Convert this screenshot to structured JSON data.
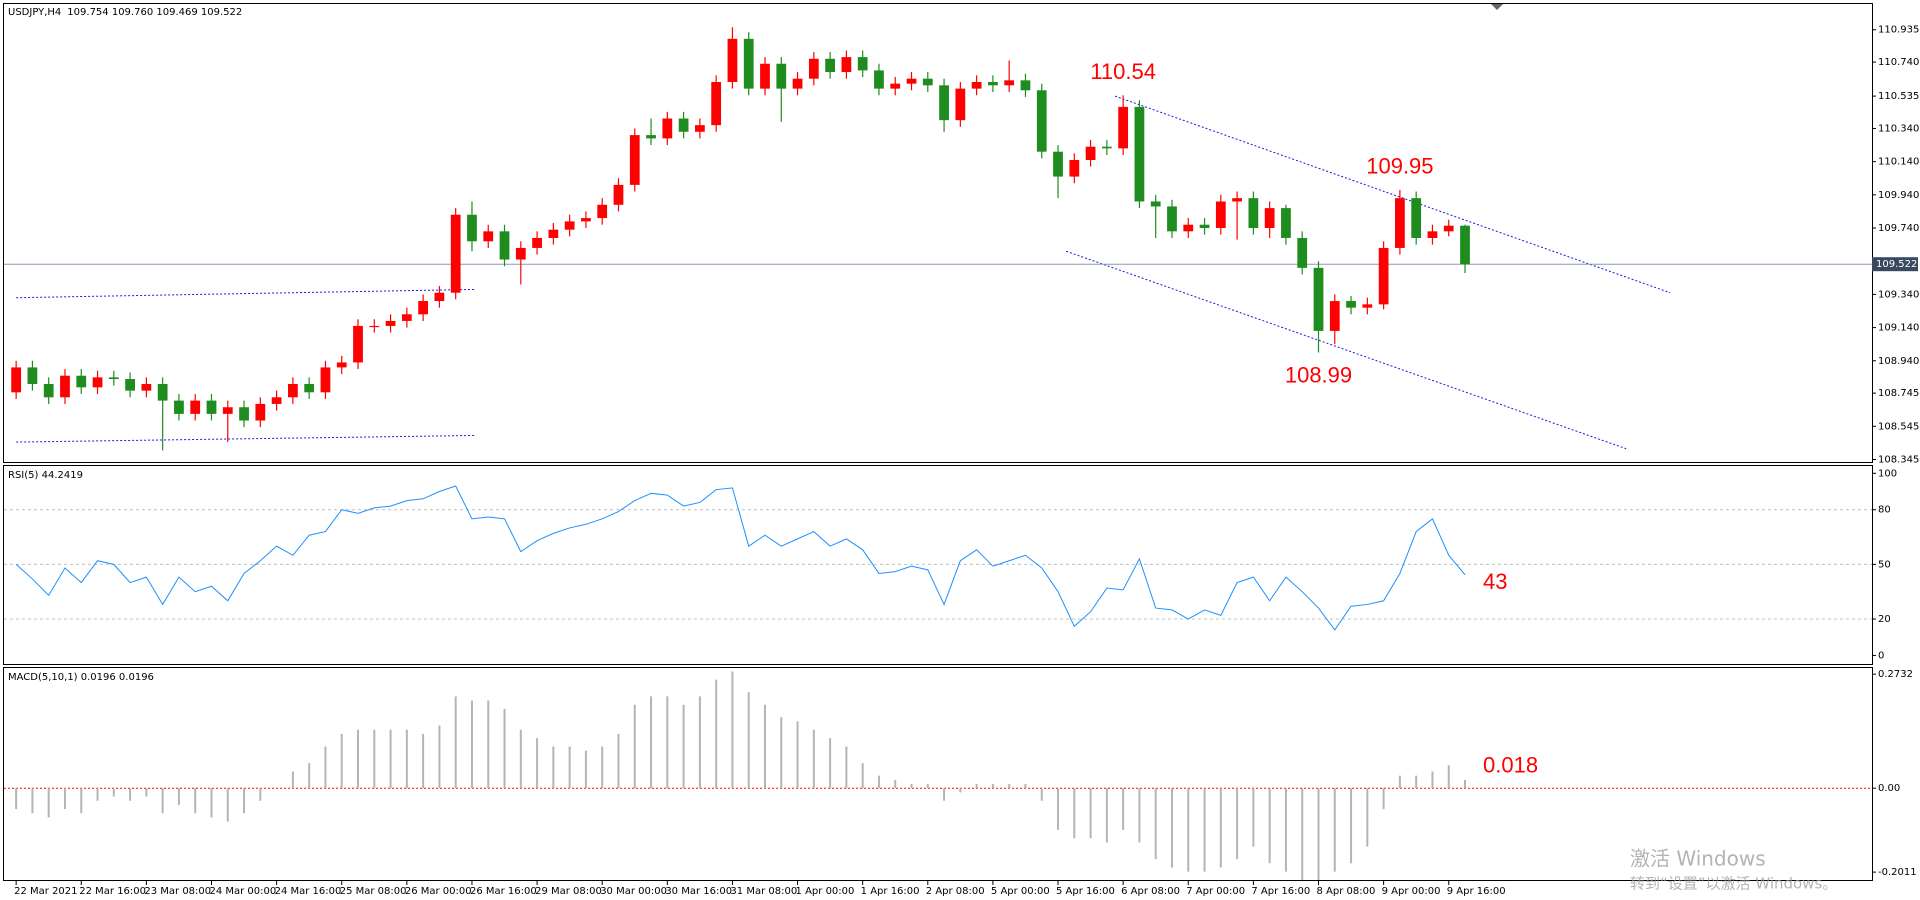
{
  "chart_data": [
    {
      "type": "candlestick",
      "title": "USDJPY,H4",
      "quote": "109.754 109.760 109.469 109.522",
      "categories": [
        "22 Mar 2021",
        null,
        null,
        null,
        "22 Mar 16:00",
        null,
        null,
        null,
        "23 Mar 08:00",
        null,
        null,
        null,
        "24 Mar 00:00",
        null,
        null,
        null,
        "24 Mar 16:00",
        null,
        null,
        null,
        "25 Mar 08:00",
        null,
        null,
        null,
        "26 Mar 00:00",
        null,
        null,
        null,
        "26 Mar 16:00",
        null,
        null,
        null,
        "29 Mar 08:00",
        null,
        null,
        null,
        "30 Mar 00:00",
        null,
        null,
        null,
        "30 Mar 16:00",
        null,
        null,
        null,
        "31 Mar 08:00",
        null,
        null,
        null,
        "1 Apr 00:00",
        null,
        null,
        null,
        "1 Apr 16:00",
        null,
        null,
        null,
        "2 Apr 08:00",
        null,
        null,
        null,
        "5 Apr 00:00",
        null,
        null,
        null,
        "5 Apr 16:00",
        null,
        null,
        null,
        "6 Apr 08:00",
        null,
        null,
        null,
        "7 Apr 00:00",
        null,
        null,
        null,
        "7 Apr 16:00",
        null,
        null,
        null,
        "8 Apr 08:00",
        null,
        null,
        null,
        "9 Apr 00:00",
        null,
        null,
        null,
        "9 Apr 16:00",
        null
      ],
      "open": [
        108.75,
        108.9,
        108.8,
        108.72,
        108.85,
        108.78,
        108.84,
        108.83,
        108.76,
        108.8,
        108.7,
        108.62,
        108.7,
        108.62,
        108.66,
        108.58,
        108.68,
        108.72,
        108.8,
        108.75,
        108.9,
        108.93,
        109.15,
        109.15,
        109.18,
        109.22,
        109.3,
        109.35,
        109.82,
        109.66,
        109.72,
        109.55,
        109.62,
        109.68,
        109.73,
        109.78,
        109.8,
        109.88,
        110.0,
        110.3,
        110.28,
        110.4,
        110.32,
        110.36,
        110.62,
        110.88,
        110.58,
        110.73,
        110.58,
        110.64,
        110.76,
        110.68,
        110.77,
        110.69,
        110.58,
        110.61,
        110.64,
        110.6,
        110.39,
        110.58,
        110.62,
        110.6,
        110.63,
        110.57,
        110.2,
        110.05,
        110.15,
        110.23,
        110.22,
        110.47,
        109.9,
        109.87,
        109.72,
        109.76,
        109.74,
        109.9,
        109.92,
        109.74,
        109.86,
        109.68,
        109.5,
        109.12,
        109.3,
        109.26,
        109.28,
        109.62,
        109.92,
        109.68,
        109.72,
        109.754
      ],
      "high": [
        108.94,
        108.94,
        108.84,
        108.89,
        108.89,
        108.88,
        108.88,
        108.87,
        108.84,
        108.84,
        108.74,
        108.74,
        108.74,
        108.7,
        108.7,
        108.72,
        108.76,
        108.84,
        108.84,
        108.94,
        108.97,
        109.19,
        109.19,
        109.22,
        109.26,
        109.34,
        109.39,
        109.86,
        109.9,
        109.76,
        109.76,
        109.66,
        109.72,
        109.77,
        109.82,
        109.84,
        109.92,
        110.04,
        110.34,
        110.4,
        110.44,
        110.44,
        110.4,
        110.66,
        110.95,
        110.92,
        110.77,
        110.77,
        110.68,
        110.8,
        110.8,
        110.81,
        110.81,
        110.73,
        110.65,
        110.68,
        110.68,
        110.64,
        110.62,
        110.66,
        110.66,
        110.75,
        110.67,
        110.61,
        110.24,
        110.19,
        110.27,
        110.27,
        110.54,
        110.51,
        109.94,
        109.91,
        109.8,
        109.8,
        109.94,
        109.96,
        109.96,
        109.9,
        109.88,
        109.72,
        109.54,
        109.34,
        109.33,
        109.32,
        109.66,
        109.97,
        109.96,
        109.76,
        109.79,
        109.76
      ],
      "low": [
        108.71,
        108.76,
        108.68,
        108.68,
        108.74,
        108.74,
        108.79,
        108.72,
        108.72,
        108.4,
        108.58,
        108.58,
        108.58,
        108.45,
        108.54,
        108.54,
        108.64,
        108.68,
        108.71,
        108.71,
        108.86,
        108.89,
        109.11,
        109.11,
        109.14,
        109.18,
        109.26,
        109.31,
        109.6,
        109.62,
        109.51,
        109.4,
        109.58,
        109.64,
        109.69,
        109.74,
        109.76,
        109.84,
        109.96,
        110.24,
        110.24,
        110.28,
        110.28,
        110.32,
        110.58,
        110.54,
        110.54,
        110.38,
        110.54,
        110.6,
        110.64,
        110.64,
        110.65,
        110.54,
        110.54,
        110.57,
        110.56,
        110.32,
        110.35,
        110.54,
        110.56,
        110.56,
        110.53,
        110.16,
        109.92,
        110.01,
        110.11,
        110.18,
        110.18,
        109.86,
        109.68,
        109.68,
        109.68,
        109.7,
        109.7,
        109.67,
        109.7,
        109.68,
        109.64,
        109.46,
        108.99,
        109.04,
        109.22,
        109.22,
        109.25,
        109.58,
        109.64,
        109.64,
        109.69,
        109.469
      ],
      "close": [
        108.9,
        108.8,
        108.72,
        108.85,
        108.78,
        108.84,
        108.83,
        108.76,
        108.8,
        108.7,
        108.62,
        108.7,
        108.62,
        108.66,
        108.58,
        108.68,
        108.72,
        108.8,
        108.75,
        108.9,
        108.93,
        109.15,
        109.15,
        109.18,
        109.22,
        109.3,
        109.35,
        109.82,
        109.66,
        109.72,
        109.55,
        109.62,
        109.68,
        109.73,
        109.78,
        109.8,
        109.88,
        110.0,
        110.3,
        110.28,
        110.4,
        110.32,
        110.36,
        110.62,
        110.88,
        110.58,
        110.73,
        110.58,
        110.64,
        110.76,
        110.68,
        110.77,
        110.69,
        110.58,
        110.61,
        110.64,
        110.6,
        110.39,
        110.58,
        110.62,
        110.6,
        110.63,
        110.57,
        110.2,
        110.05,
        110.15,
        110.23,
        110.22,
        110.47,
        109.9,
        109.87,
        109.72,
        109.76,
        109.74,
        109.9,
        109.92,
        109.74,
        109.86,
        109.68,
        109.5,
        109.12,
        109.3,
        109.26,
        109.28,
        109.62,
        109.92,
        109.68,
        109.72,
        109.754,
        109.522
      ],
      "up_color": "#ff0000",
      "down_color": "#1f8c1f",
      "xlim": [
        -0.5,
        114
      ],
      "ylim": [
        108.33,
        111.09
      ],
      "yticks": [
        110.935,
        {
          "value": 110.74,
          "label": "110.740"
        },
        110.535,
        {
          "value": 110.34,
          "label": "110.340"
        },
        {
          "value": 110.14,
          "label": "110.140"
        },
        {
          "value": 109.94,
          "label": "109.940"
        },
        {
          "value": 109.74,
          "label": "109.740"
        },
        {
          "value": 109.34,
          "label": "109.340"
        },
        {
          "value": 109.14,
          "label": "109.140"
        },
        {
          "value": 108.94,
          "label": "108.940"
        },
        108.745,
        108.545,
        108.345
      ],
      "price_line": 109.522,
      "price_line_color": "#8c9cb4",
      "trend_color": "#1a1adc",
      "trend_lines": [
        {
          "x": [
            0,
            28.2
          ],
          "y": [
            109.32,
            109.37
          ]
        },
        {
          "x": [
            0,
            28.2
          ],
          "y": [
            108.45,
            108.49
          ]
        },
        {
          "x": [
            67.5,
            101.6
          ],
          "y": [
            110.535,
            109.35
          ]
        },
        {
          "x": [
            64.5,
            98.9
          ],
          "y": [
            109.6,
            108.41
          ]
        }
      ],
      "annotation_color": "#ff0000",
      "annotations": [
        {
          "value": 110.54,
          "x": 68
        },
        {
          "value": 109.95,
          "x": 85
        },
        {
          "value": 108.99,
          "x": 80
        }
      ]
    },
    {
      "type": "line",
      "title": "RSI(5) 44.2419",
      "color": "#1e90ff",
      "values": [
        50,
        42,
        33,
        48,
        40,
        52,
        50,
        40,
        43,
        28,
        43,
        35,
        38,
        30,
        45,
        52,
        60,
        55,
        66,
        68,
        80,
        78,
        81,
        82,
        85,
        86,
        90,
        93,
        75,
        76,
        75,
        57,
        63,
        67,
        70,
        72,
        75,
        79,
        85,
        89,
        88,
        82,
        84,
        91,
        92,
        60,
        66,
        60,
        64,
        68,
        60,
        64,
        58,
        45,
        46,
        49,
        47,
        28,
        52,
        58,
        49,
        52,
        55,
        48,
        35,
        16,
        24,
        37,
        36,
        53,
        26,
        25,
        20,
        25,
        22,
        40,
        43,
        30,
        43,
        35,
        26,
        14,
        27,
        28,
        30,
        45,
        68,
        75,
        55,
        44.2419
      ],
      "ylim": [
        -4.7,
        104
      ],
      "yticks": [
        0,
        20,
        50,
        80,
        100
      ],
      "levels": [
        20,
        50,
        80
      ],
      "annotation_color": "#ff0000",
      "annotations": [
        {
          "value": 43
        }
      ]
    },
    {
      "type": "bar",
      "title": "MACD(5,10,1) 0.0196 0.0196",
      "color": "#b4b4b4",
      "baseline_color": "#ff0000",
      "values": [
        -0.05,
        -0.06,
        -0.07,
        -0.05,
        -0.06,
        -0.03,
        -0.02,
        -0.03,
        -0.02,
        -0.06,
        -0.04,
        -0.06,
        -0.07,
        -0.08,
        -0.06,
        -0.03,
        0.0,
        0.04,
        0.06,
        0.1,
        0.13,
        0.14,
        0.14,
        0.14,
        0.14,
        0.13,
        0.15,
        0.22,
        0.21,
        0.21,
        0.19,
        0.14,
        0.12,
        0.1,
        0.1,
        0.09,
        0.1,
        0.13,
        0.2,
        0.22,
        0.22,
        0.2,
        0.22,
        0.26,
        0.28,
        0.23,
        0.2,
        0.17,
        0.16,
        0.14,
        0.12,
        0.1,
        0.06,
        0.03,
        0.02,
        0.01,
        0.01,
        -0.03,
        -0.01,
        0.01,
        0.01,
        0.01,
        0.01,
        -0.03,
        -0.1,
        -0.12,
        -0.12,
        -0.13,
        -0.1,
        -0.13,
        -0.17,
        -0.19,
        -0.2,
        -0.2,
        -0.19,
        -0.17,
        -0.14,
        -0.18,
        -0.2,
        -0.22,
        -0.22,
        -0.2,
        -0.18,
        -0.14,
        -0.05,
        0.03,
        0.03,
        0.04,
        0.055,
        0.0196
      ],
      "ylim": [
        -0.22,
        0.288
      ],
      "yticks": [
        0.2732,
        {
          "value": 0,
          "label": "0.00"
        },
        -0.2011
      ],
      "annotation_color": "#ff0000",
      "annotations": [
        {
          "value": 0.018
        }
      ]
    }
  ],
  "watermark": [
    "激活 Windows",
    "转到“设置”以激活 Windows。"
  ]
}
